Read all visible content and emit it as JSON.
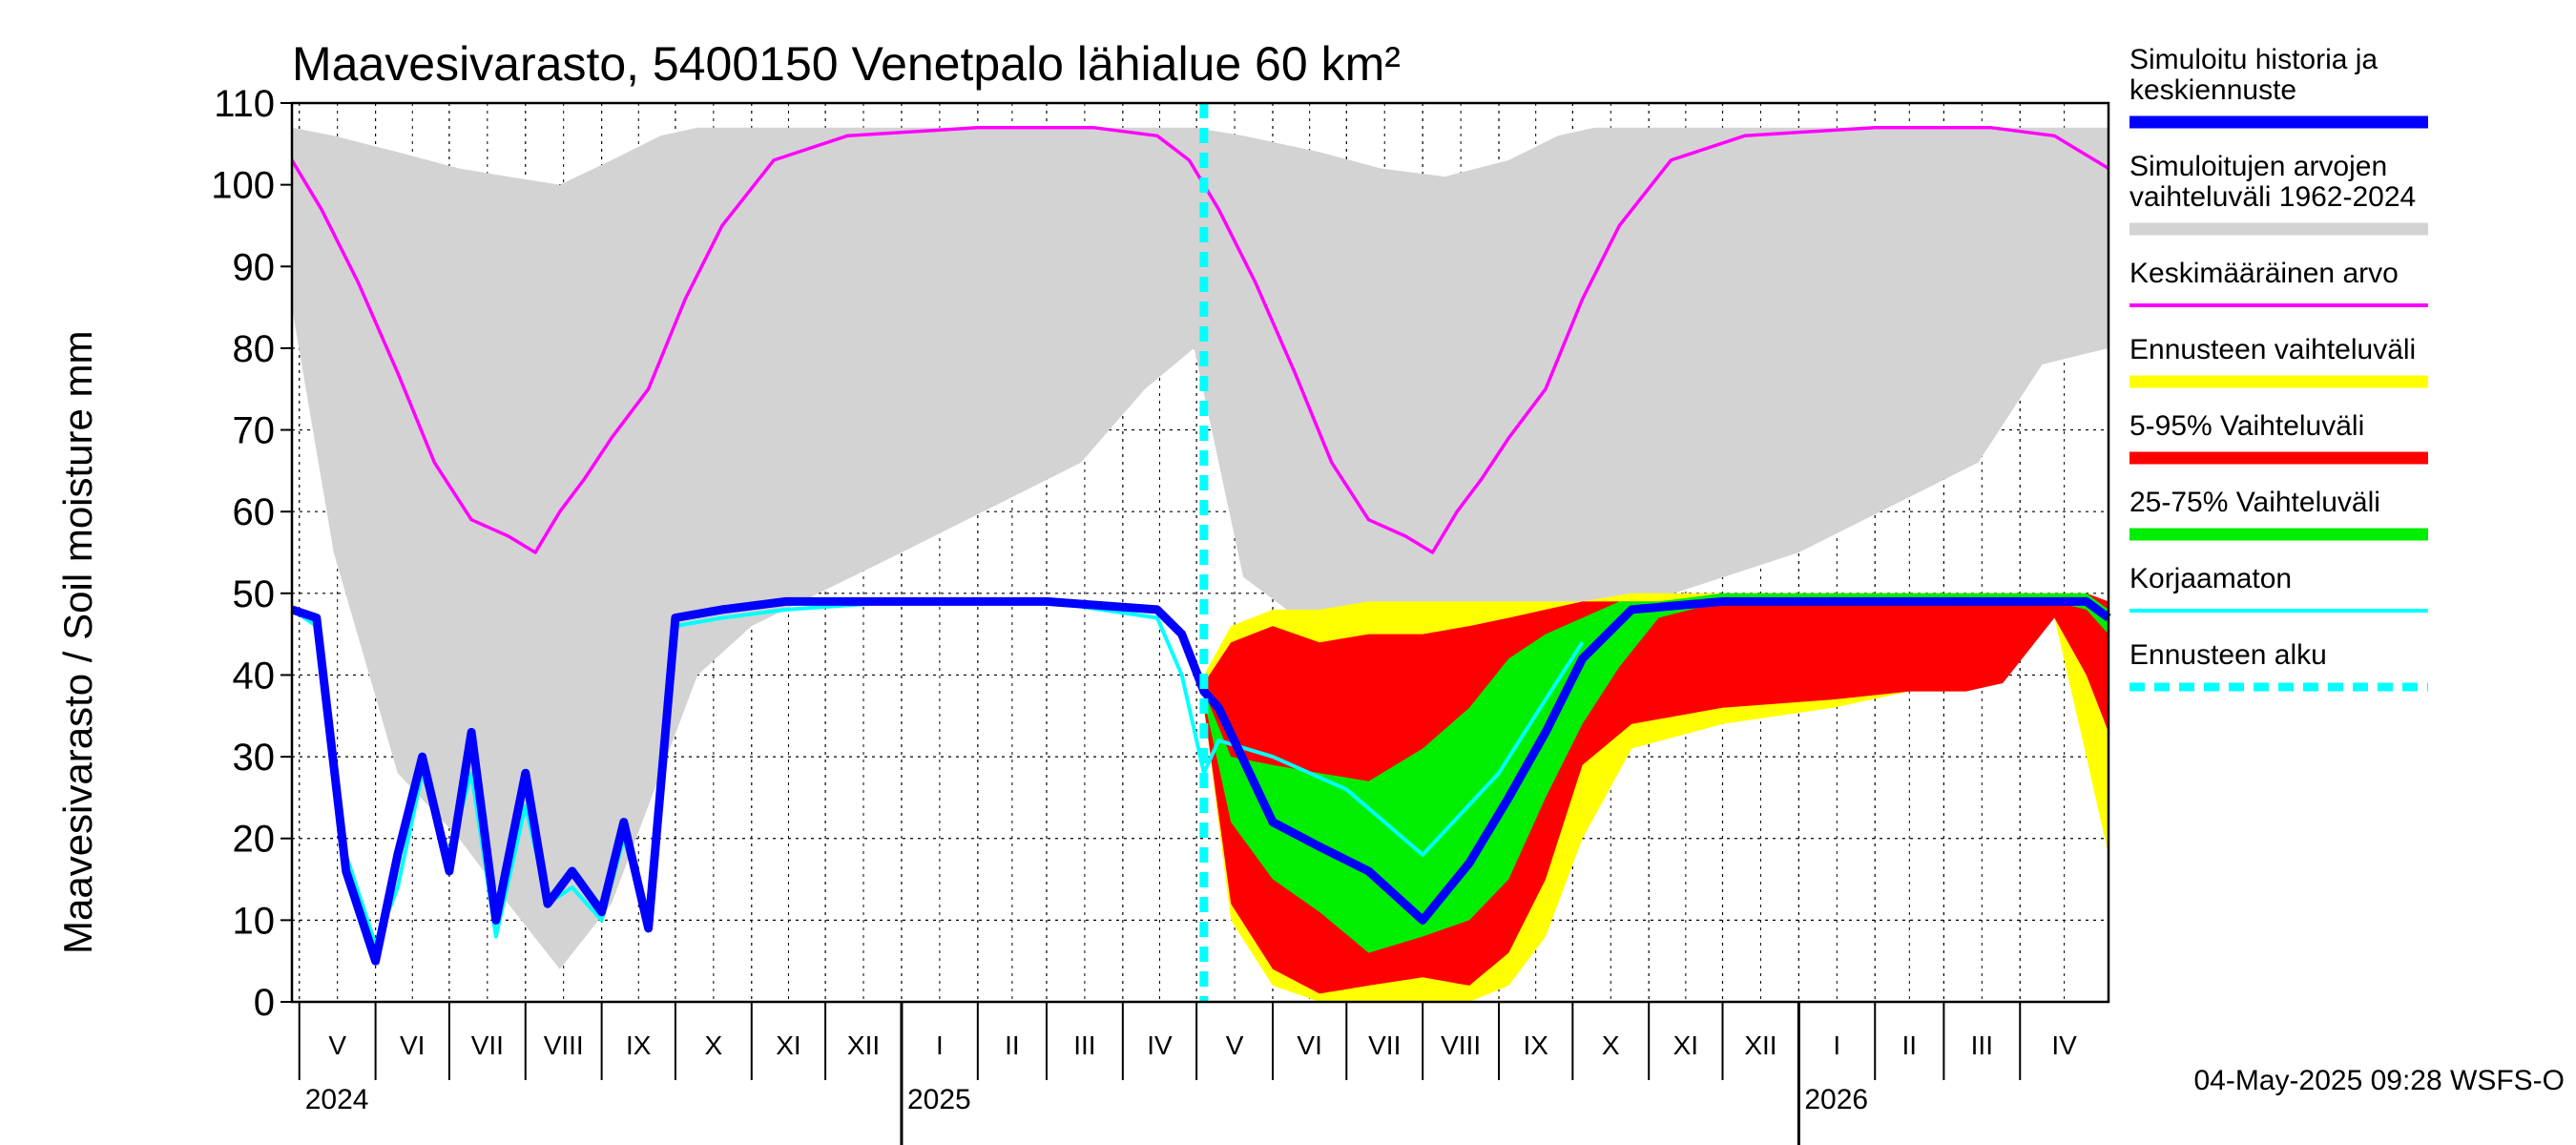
{
  "chart_data": {
    "type": "area",
    "title": "Maavesivarasto, 5400150 Venetpalo lähialue 60 km²",
    "ylabel": "Maavesivarasto / Soil moisture   mm",
    "ylim": [
      0,
      110
    ],
    "yticks": [
      0,
      10,
      20,
      30,
      40,
      50,
      60,
      70,
      80,
      90,
      100,
      110
    ],
    "x_range": [
      "2024-04-28",
      "2026-05-07"
    ],
    "forecast_start": "2025-05-04",
    "grid": true,
    "legend_position": "right",
    "months": [
      {
        "label": "V",
        "start": "2024-05-01"
      },
      {
        "label": "VI",
        "start": "2024-06-01"
      },
      {
        "label": "VII",
        "start": "2024-07-01"
      },
      {
        "label": "VIII",
        "start": "2024-08-01"
      },
      {
        "label": "IX",
        "start": "2024-09-01"
      },
      {
        "label": "X",
        "start": "2024-10-01"
      },
      {
        "label": "XI",
        "start": "2024-11-01"
      },
      {
        "label": "XII",
        "start": "2024-12-01"
      },
      {
        "label": "I",
        "start": "2025-01-01"
      },
      {
        "label": "II",
        "start": "2025-02-01"
      },
      {
        "label": "III",
        "start": "2025-03-01"
      },
      {
        "label": "IV",
        "start": "2025-04-01"
      },
      {
        "label": "V",
        "start": "2025-05-01"
      },
      {
        "label": "VI",
        "start": "2025-06-01"
      },
      {
        "label": "VII",
        "start": "2025-07-01"
      },
      {
        "label": "VIII",
        "start": "2025-08-01"
      },
      {
        "label": "IX",
        "start": "2025-09-01"
      },
      {
        "label": "X",
        "start": "2025-10-01"
      },
      {
        "label": "XI",
        "start": "2025-11-01"
      },
      {
        "label": "XII",
        "start": "2025-12-01"
      },
      {
        "label": "I",
        "start": "2026-01-01"
      },
      {
        "label": "II",
        "start": "2026-02-01"
      },
      {
        "label": "III",
        "start": "2026-03-01"
      },
      {
        "label": "IV",
        "start": "2026-04-01"
      }
    ],
    "years": [
      {
        "label": "2024",
        "date": "2024-05-01"
      },
      {
        "label": "2025",
        "date": "2025-01-01"
      },
      {
        "label": "2026",
        "date": "2026-01-01"
      }
    ],
    "series": [
      {
        "name": "Simuloitujen arvojen vaihteluväli 1962-2024",
        "kind": "band",
        "color": "#d3d3d3",
        "x": [
          "2024-04-28",
          "2024-05-15",
          "2024-06-10",
          "2024-07-05",
          "2024-07-25",
          "2024-08-15",
          "2024-09-05",
          "2024-09-25",
          "2024-10-10",
          "2024-11-01",
          "2025-01-01",
          "2025-03-15",
          "2025-04-10",
          "2025-04-30",
          "2025-05-20",
          "2025-06-20",
          "2025-07-15",
          "2025-08-10",
          "2025-09-05",
          "2025-09-25",
          "2025-10-10",
          "2025-11-01",
          "2026-01-01",
          "2026-03-15",
          "2026-04-10",
          "2026-05-07"
        ],
        "lower": [
          85,
          55,
          28,
          20,
          12,
          4,
          12,
          28,
          40,
          46,
          55,
          66,
          75,
          80,
          52,
          45,
          45,
          45,
          45,
          45,
          46,
          49,
          55,
          66,
          78,
          80
        ],
        "upper": [
          107,
          106,
          104,
          102,
          101,
          100,
          103,
          106,
          107,
          107,
          107,
          107,
          107,
          107,
          106,
          104,
          102,
          101,
          103,
          106,
          107,
          107,
          107,
          107,
          107,
          107
        ]
      },
      {
        "name": "Ennusteen vaihteluväli",
        "kind": "band",
        "color": "#ffff00",
        "x": [
          "2025-05-04",
          "2025-05-15",
          "2025-06-01",
          "2025-06-20",
          "2025-07-10",
          "2025-08-01",
          "2025-08-20",
          "2025-09-05",
          "2025-09-20",
          "2025-10-05",
          "2025-10-25",
          "2025-12-01",
          "2026-01-15",
          "2026-02-15",
          "2026-03-10",
          "2026-03-25",
          "2026-04-15",
          "2026-04-28",
          "2026-05-07"
        ],
        "lower": [
          36,
          10,
          2,
          0,
          0,
          0,
          0,
          2,
          8,
          20,
          31,
          34,
          36,
          38,
          38,
          40,
          47,
          30,
          18
        ],
        "upper": [
          40,
          46,
          48,
          48,
          49,
          49,
          49,
          49,
          49,
          49,
          50,
          50,
          50,
          50,
          50,
          50,
          50,
          50,
          49
        ]
      },
      {
        "name": "5-95% Vaihteluväli",
        "kind": "band",
        "color": "#ff0000",
        "x": [
          "2025-05-04",
          "2025-05-15",
          "2025-06-01",
          "2025-06-20",
          "2025-07-10",
          "2025-08-01",
          "2025-08-20",
          "2025-09-05",
          "2025-09-20",
          "2025-10-05",
          "2025-10-25",
          "2025-12-01",
          "2026-01-15",
          "2026-02-15",
          "2026-03-10",
          "2026-03-25",
          "2026-04-15",
          "2026-04-28",
          "2026-05-07"
        ],
        "lower": [
          36,
          12,
          4,
          1,
          2,
          3,
          2,
          6,
          15,
          29,
          34,
          36,
          37,
          38,
          38,
          39,
          47,
          40,
          33
        ],
        "upper": [
          39,
          44,
          46,
          44,
          45,
          45,
          46,
          47,
          48,
          49,
          49,
          49,
          49,
          49,
          49,
          49,
          49,
          50,
          49
        ]
      },
      {
        "name": "25-75% Vaihteluväli",
        "kind": "band",
        "color": "#00ee00",
        "x": [
          "2025-05-04",
          "2025-05-15",
          "2025-06-01",
          "2025-06-20",
          "2025-07-10",
          "2025-08-01",
          "2025-08-20",
          "2025-09-05",
          "2025-09-20",
          "2025-10-05",
          "2025-10-20",
          "2025-11-05",
          "2025-12-01",
          "2026-04-15",
          "2026-04-28",
          "2026-05-07"
        ],
        "lower": [
          37,
          22,
          15,
          11,
          6,
          8,
          10,
          15,
          25,
          34,
          41,
          47,
          49,
          49,
          48,
          45
        ],
        "upper": [
          38,
          30,
          29,
          28,
          27,
          31,
          36,
          42,
          45,
          47,
          49,
          49,
          50,
          50,
          50,
          48
        ]
      },
      {
        "name": "Keskimääräinen arvo",
        "kind": "line",
        "color": "#ff00ff",
        "x": [
          "2024-04-28",
          "2024-05-10",
          "2024-05-25",
          "2024-06-10",
          "2024-06-25",
          "2024-07-10",
          "2024-07-25",
          "2024-08-05",
          "2024-08-15",
          "2024-08-25",
          "2024-09-05",
          "2024-09-20",
          "2024-10-05",
          "2024-10-20",
          "2024-11-10",
          "2024-12-10",
          "2025-02-01",
          "2025-03-20",
          "2025-04-15",
          "2025-04-28",
          "2025-05-10",
          "2025-05-25",
          "2025-06-10",
          "2025-06-25",
          "2025-07-10",
          "2025-07-25",
          "2025-08-05",
          "2025-08-15",
          "2025-08-25",
          "2025-09-05",
          "2025-09-20",
          "2025-10-05",
          "2025-10-20",
          "2025-11-10",
          "2025-12-10",
          "2026-02-01",
          "2026-03-20",
          "2026-04-15",
          "2026-05-07"
        ],
        "y": [
          103,
          97,
          88,
          77,
          66,
          59,
          57,
          55,
          60,
          64,
          69,
          75,
          86,
          95,
          103,
          106,
          107,
          107,
          106,
          103,
          97,
          88,
          77,
          66,
          59,
          57,
          55,
          60,
          64,
          69,
          75,
          86,
          95,
          103,
          106,
          107,
          107,
          106,
          102
        ]
      },
      {
        "name": "Korjaamaton",
        "kind": "line",
        "color": "#00ffff",
        "x": [
          "2024-04-28",
          "2024-05-08",
          "2024-05-20",
          "2024-06-01",
          "2024-06-10",
          "2024-06-20",
          "2024-07-01",
          "2024-07-10",
          "2024-07-20",
          "2024-08-01",
          "2024-08-10",
          "2024-08-20",
          "2024-09-01",
          "2024-09-10",
          "2024-09-20",
          "2024-10-01",
          "2024-10-20",
          "2024-11-15",
          "2025-01-01",
          "2025-03-01",
          "2025-04-15",
          "2025-04-25",
          "2025-05-04",
          "2025-05-10",
          "2025-06-01",
          "2025-07-01",
          "2025-08-01",
          "2025-09-01",
          "2025-09-20",
          "2025-10-05"
        ],
        "y": [
          48,
          46,
          18,
          7,
          14,
          28,
          18,
          28,
          8,
          24,
          12,
          14,
          10,
          20,
          10,
          46,
          47,
          48,
          49,
          49,
          47,
          40,
          28,
          32,
          30,
          26,
          18,
          28,
          37,
          44
        ]
      },
      {
        "name": "Simuloitu historia ja keskiennuste",
        "kind": "line",
        "color": "#0000ff",
        "x": [
          "2024-04-28",
          "2024-05-08",
          "2024-05-20",
          "2024-06-01",
          "2024-06-10",
          "2024-06-20",
          "2024-07-01",
          "2024-07-10",
          "2024-07-20",
          "2024-08-01",
          "2024-08-10",
          "2024-08-20",
          "2024-09-01",
          "2024-09-10",
          "2024-09-20",
          "2024-10-01",
          "2024-10-20",
          "2024-11-15",
          "2025-01-01",
          "2025-03-01",
          "2025-04-15",
          "2025-04-25",
          "2025-05-04",
          "2025-05-10",
          "2025-06-01",
          "2025-06-20",
          "2025-07-10",
          "2025-08-01",
          "2025-08-20",
          "2025-09-05",
          "2025-09-20",
          "2025-10-05",
          "2025-10-25",
          "2025-12-01",
          "2026-03-01",
          "2026-04-28",
          "2026-05-07"
        ],
        "y": [
          48,
          47,
          16,
          5,
          18,
          30,
          16,
          33,
          10,
          28,
          12,
          16,
          11,
          22,
          9,
          47,
          48,
          49,
          49,
          49,
          48,
          45,
          38,
          36,
          22,
          19,
          16,
          10,
          17,
          25,
          33,
          42,
          48,
          49,
          49,
          49,
          47
        ]
      },
      {
        "name": "Ennusteen alku",
        "kind": "vline",
        "color": "#00ffff",
        "x": "2025-05-04"
      }
    ],
    "timestamp": "04-May-2025 09:28 WSFS-O"
  },
  "legend": [
    {
      "lines": [
        "Simuloitu historia ja",
        "keskiennuste"
      ],
      "color": "#0000ff",
      "style": "thick"
    },
    {
      "lines": [
        "Simuloitujen arvojen",
        "vaihteluväli 1962-2024"
      ],
      "color": "#d3d3d3",
      "style": "thick"
    },
    {
      "lines": [
        "Keskimääräinen arvo"
      ],
      "color": "#ff00ff",
      "style": "thin"
    },
    {
      "lines": [
        "Ennusteen vaihteluväli"
      ],
      "color": "#ffff00",
      "style": "thick"
    },
    {
      "lines": [
        "5-95% Vaihteluväli"
      ],
      "color": "#ff0000",
      "style": "thick"
    },
    {
      "lines": [
        "25-75% Vaihteluväli"
      ],
      "color": "#00ee00",
      "style": "thick"
    },
    {
      "lines": [
        "Korjaamaton"
      ],
      "color": "#00ffff",
      "style": "thin"
    },
    {
      "lines": [
        "Ennusteen alku"
      ],
      "color": "#00ffff",
      "style": "dashed"
    }
  ]
}
